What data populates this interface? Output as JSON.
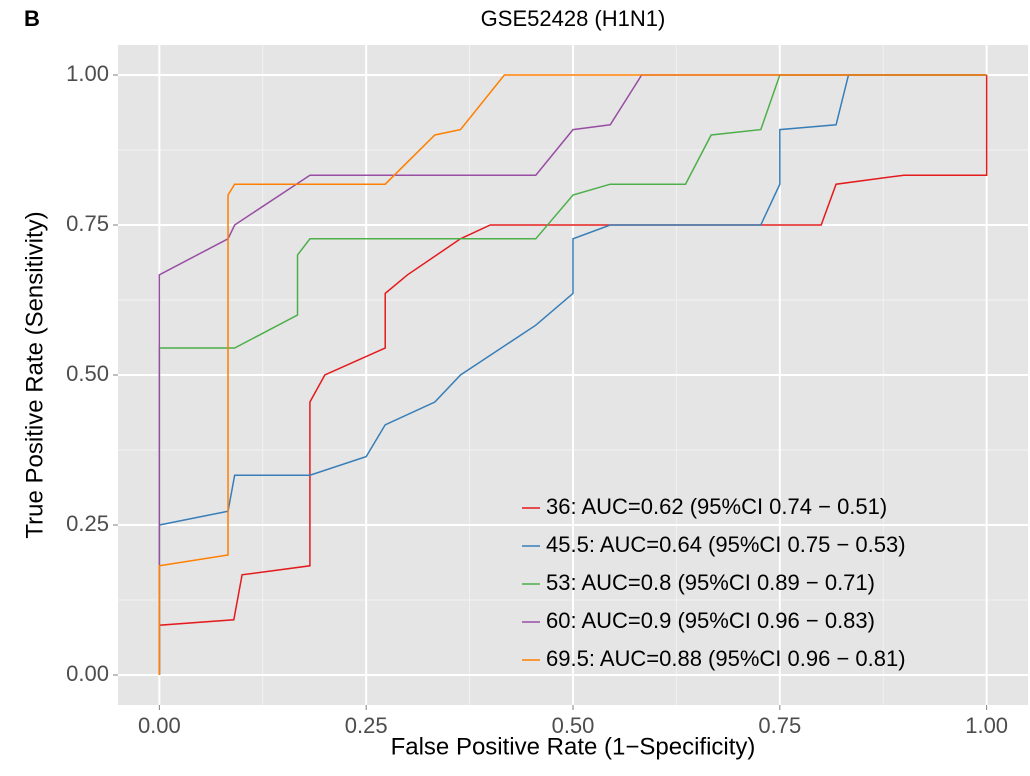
{
  "chart_data": {
    "type": "line",
    "panel_label": "B",
    "title": "GSE52428 (H1N1)",
    "x_label": "False Positive Rate (1−Specificity)",
    "y_label": "True Positive Rate (Sensitivity)",
    "xlim": [
      -0.05,
      1.05
    ],
    "ylim": [
      -0.05,
      1.05
    ],
    "xticks": [
      {
        "value": 0,
        "label": "0.00"
      },
      {
        "value": 0.25,
        "label": "0.25"
      },
      {
        "value": 0.5,
        "label": "0.50"
      },
      {
        "value": 0.75,
        "label": "0.75"
      },
      {
        "value": 1,
        "label": "1.00"
      }
    ],
    "yticks": [
      {
        "value": 0,
        "label": "0.00"
      },
      {
        "value": 0.25,
        "label": "0.25"
      },
      {
        "value": 0.5,
        "label": "0.50"
      },
      {
        "value": 0.75,
        "label": "0.75"
      },
      {
        "value": 1,
        "label": "1.00"
      }
    ],
    "grid": true,
    "legend_position": "bottom-right",
    "series": [
      {
        "name": "36: AUC=0.62 (95%CI 0.74 − 0.51)",
        "color": "#e41a1c",
        "x": [
          0,
          0,
          0.09,
          0.1,
          0.182,
          0.182,
          0.2,
          0.273,
          0.273,
          0.3,
          0.364,
          0.4,
          0.8,
          0.818,
          0.9,
          1,
          1
        ],
        "values": [
          0,
          0.083,
          0.092,
          0.167,
          0.182,
          0.455,
          0.5,
          0.545,
          0.636,
          0.667,
          0.727,
          0.75,
          0.75,
          0.818,
          0.833,
          0.833,
          1
        ]
      },
      {
        "name": "45.5: AUC=0.64 (95%CI 0.75 − 0.53)",
        "color": "#377eb8",
        "x": [
          0,
          0,
          0.083,
          0.091,
          0.182,
          0.25,
          0.273,
          0.333,
          0.364,
          0.455,
          0.5,
          0.5,
          0.545,
          0.727,
          0.75,
          0.75,
          0.818,
          0.833,
          1
        ],
        "values": [
          0,
          0.25,
          0.273,
          0.333,
          0.333,
          0.364,
          0.417,
          0.455,
          0.5,
          0.583,
          0.636,
          0.727,
          0.75,
          0.75,
          0.818,
          0.909,
          0.917,
          1,
          1
        ]
      },
      {
        "name": "53: AUC=0.8 (95%CI 0.89 − 0.71)",
        "color": "#4daf4a",
        "x": [
          0,
          0,
          0.091,
          0.167,
          0.167,
          0.182,
          0.455,
          0.5,
          0.545,
          0.636,
          0.667,
          0.727,
          0.75,
          1
        ],
        "values": [
          0,
          0.545,
          0.545,
          0.6,
          0.7,
          0.727,
          0.727,
          0.8,
          0.818,
          0.818,
          0.9,
          0.909,
          1,
          1
        ]
      },
      {
        "name": "60: AUC=0.9 (95%CI 0.96 − 0.83)",
        "color": "#984ea3",
        "x": [
          0,
          0,
          0.083,
          0.091,
          0.182,
          0.455,
          0.5,
          0.545,
          0.583,
          1
        ],
        "values": [
          0,
          0.667,
          0.727,
          0.75,
          0.833,
          0.833,
          0.909,
          0.917,
          1,
          1
        ]
      },
      {
        "name": "69.5: AUC=0.88 (95%CI 0.96 − 0.81)",
        "color": "#ff7f00",
        "x": [
          0,
          0,
          0.083,
          0.083,
          0.091,
          0.273,
          0.333,
          0.364,
          0.417,
          1
        ],
        "values": [
          0,
          0.182,
          0.2,
          0.8,
          0.818,
          0.818,
          0.9,
          0.909,
          1,
          1
        ]
      }
    ]
  }
}
